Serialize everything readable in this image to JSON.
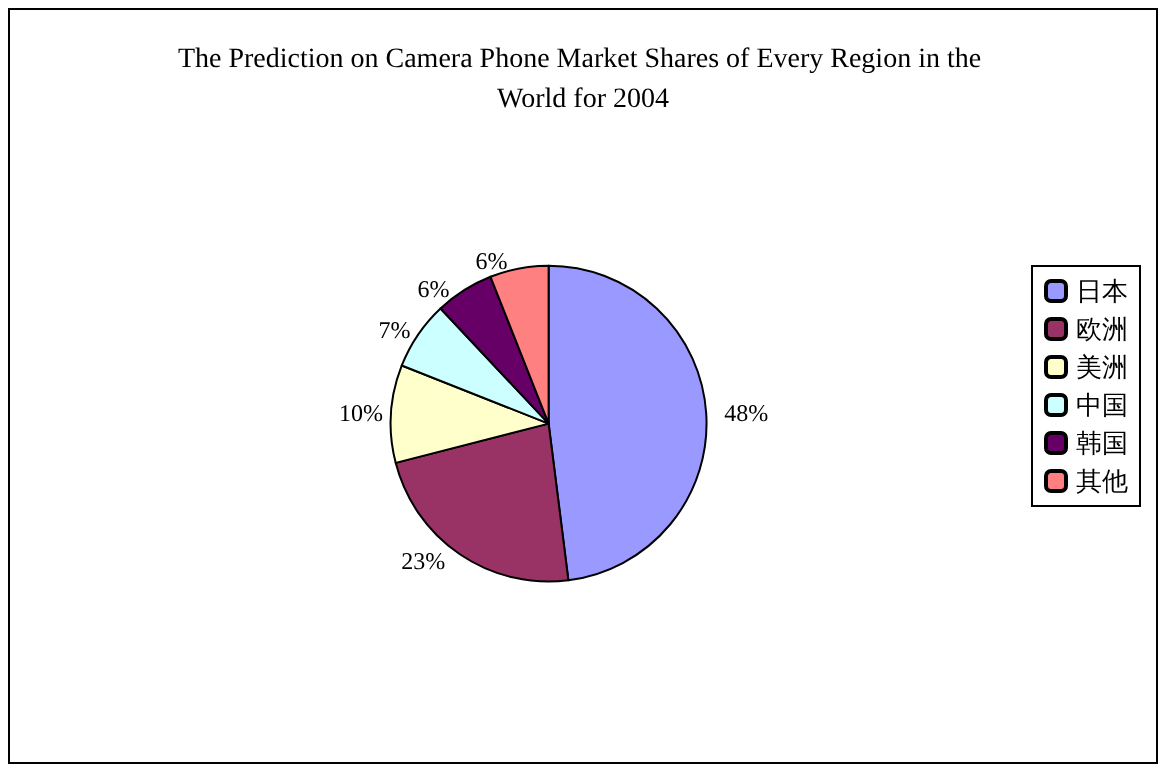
{
  "chart_data": {
    "type": "pie",
    "title": "The Prediction on Camera Phone Market Shares of Every Region in the World for 2004",
    "categories": [
      "日本",
      "欧洲",
      "美洲",
      "中国",
      "韩国",
      "其他"
    ],
    "values": [
      48,
      23,
      10,
      7,
      6,
      6
    ],
    "value_labels": [
      "48%",
      "23%",
      "10%",
      "7%",
      "6%",
      "6%"
    ],
    "colors": [
      "#9999ff",
      "#993366",
      "#ffffcc",
      "#ccffff",
      "#660066",
      "#ff8080"
    ],
    "legend": "right"
  }
}
